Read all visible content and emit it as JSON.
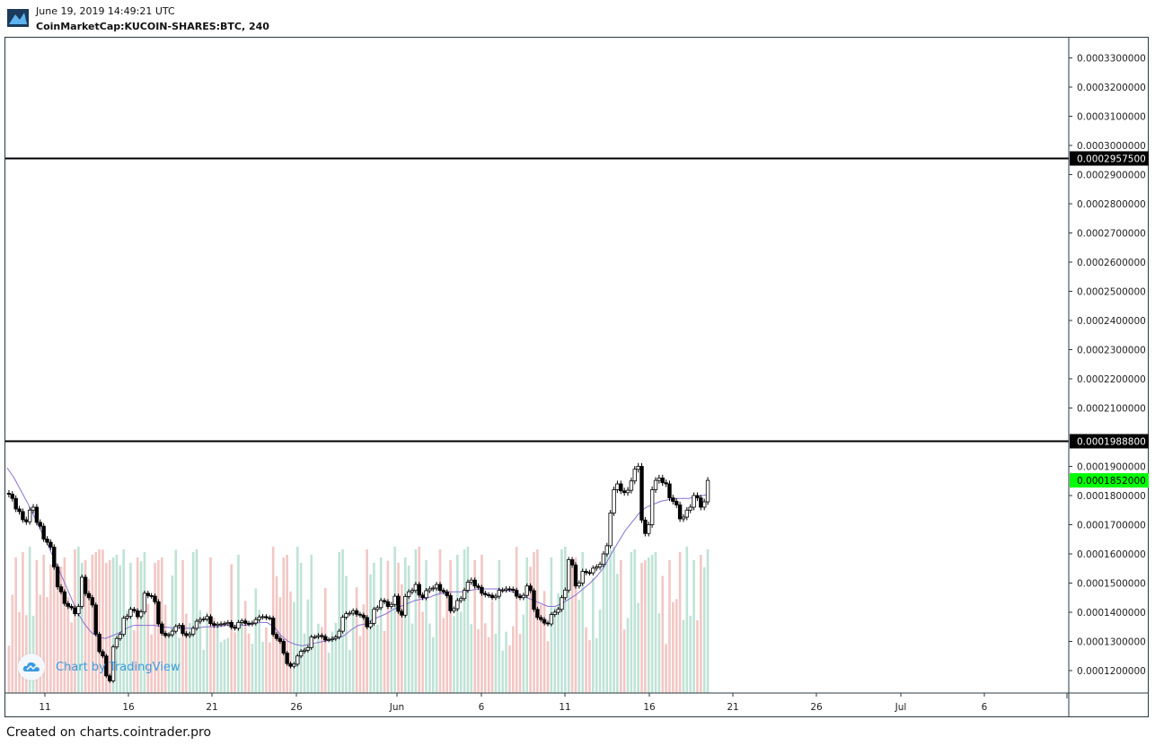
{
  "header": {
    "date": "June 19, 2019 14:49:21 UTC",
    "symbol": "CoinMarketCap:KUCOIN-SHARES:BTC, 240"
  },
  "footer": {
    "text": "Created on charts.cointrader.pro"
  },
  "watermark": {
    "text": "Chart by TradingView",
    "icon": "tradingview-cloud-icon"
  },
  "colors": {
    "candle_outline": "#000000",
    "ma_line": "#8a6fd0",
    "volume_up": "#bfe3d6",
    "volume_down": "#f2c7c4",
    "last_price_bg": "#00ff00",
    "hline_label_bg": "#000000",
    "watermark": "#3a9be0"
  },
  "chart_data": {
    "type": "candlestick",
    "y_axis_labels": [
      "0.0003300000",
      "0.0003200000",
      "0.0003100000",
      "0.0003000000",
      "0.0002900000",
      "0.0002800000",
      "0.0002700000",
      "0.0002600000",
      "0.0002500000",
      "0.0002400000",
      "0.0002300000",
      "0.0002200000",
      "0.0002100000",
      "0.0001900000",
      "0.0001800000",
      "0.0001700000",
      "0.0001600000",
      "0.0001500000",
      "0.0001400000",
      "0.0001300000",
      "0.0001200000"
    ],
    "x_axis_labels": [
      "11",
      "16",
      "21",
      "26",
      "Jun",
      "6",
      "11",
      "16",
      "21",
      "26",
      "Jul",
      "6"
    ],
    "ylim": [
      0.000113,
      0.000337
    ],
    "horizontal_lines": [
      {
        "value": 0.00029575,
        "label": "0.0002957500"
      },
      {
        "value": 0.00019888,
        "label": "0.0001988800"
      }
    ],
    "last_price": {
      "value": 0.0001852,
      "label": "0.0001852000"
    },
    "close_series": [
      0.000179,
      0.0001745,
      0.000171,
      0.000176,
      0.0001695,
      0.000164,
      0.0001555,
      0.000147,
      0.000142,
      0.0001395,
      0.000152,
      0.000145,
      0.0001325,
      0.000125,
      0.0001165,
      0.000131,
      0.000138,
      0.000141,
      0.0001385,
      0.0001465,
      0.0001455,
      0.000136,
      0.000132,
      0.0001335,
      0.0001355,
      0.000132,
      0.0001345,
      0.0001375,
      0.0001385,
      0.0001355,
      0.000136,
      0.0001365,
      0.0001345,
      0.000137,
      0.000136,
      0.0001375,
      0.0001385,
      0.000138,
      0.000131,
      0.000126,
      0.0001215,
      0.000125,
      0.000127,
      0.0001315,
      0.000132,
      0.0001305,
      0.000131,
      0.0001335,
      0.0001395,
      0.0001405,
      0.000139,
      0.000135,
      0.000141,
      0.000144,
      0.000142,
      0.0001455,
      0.000139,
      0.000147,
      0.0001495,
      0.000145,
      0.000148,
      0.0001495,
      0.000147,
      0.0001405,
      0.000144,
      0.0001475,
      0.000151,
      0.0001485,
      0.000146,
      0.000145,
      0.0001475,
      0.000148,
      0.0001475,
      0.000145,
      0.000149,
      0.000141,
      0.0001375,
      0.000136,
      0.00014,
      0.000145,
      0.000158,
      0.000149,
      0.000154,
      0.0001535,
      0.0001555,
      0.00016,
      0.000174,
      0.000184,
      0.000181,
      0.000185,
      0.00019,
      0.000167,
      0.000182,
      0.000186,
      0.000184,
      0.000178,
      0.000172,
      0.000175,
      0.00018,
      0.000176,
      0.0001852
    ],
    "ma_series": [
      0.0001895,
      0.000186,
      0.0001815,
      0.000177,
      0.000172,
      0.000167,
      0.000162,
      0.0001565,
      0.000151,
      0.0001455,
      0.00014,
      0.000136,
      0.000133,
      0.0001315,
      0.000131,
      0.000132,
      0.000133,
      0.0001345,
      0.0001355,
      0.0001355,
      0.0001355,
      0.0001355,
      0.000135,
      0.0001348,
      0.0001345,
      0.0001345,
      0.0001345,
      0.0001345,
      0.000135,
      0.000135,
      0.000135,
      0.0001355,
      0.0001355,
      0.0001355,
      0.0001355,
      0.000136,
      0.0001365,
      0.0001365,
      0.000135,
      0.000132,
      0.00013,
      0.000129,
      0.0001285,
      0.000129,
      0.0001295,
      0.00013,
      0.0001305,
      0.000131,
      0.000132,
      0.000134,
      0.0001355,
      0.000136,
      0.0001375,
      0.0001385,
      0.0001395,
      0.000141,
      0.000142,
      0.000143,
      0.000144,
      0.0001445,
      0.000145,
      0.000146,
      0.0001465,
      0.000147,
      0.000147,
      0.000147,
      0.0001475,
      0.000148,
      0.000148,
      0.000148,
      0.000148,
      0.0001475,
      0.000147,
      0.000146,
      0.000145,
      0.000144,
      0.000143,
      0.000142,
      0.000142,
      0.000143,
      0.0001445,
      0.000146,
      0.000148,
      0.00015,
      0.0001525,
      0.0001555,
      0.00016,
      0.000164,
      0.000168,
      0.000171,
      0.000174,
      0.000176,
      0.000177,
      0.000178,
      0.0001785,
      0.000179,
      0.000179,
      0.000179,
      0.0001795,
      0.00018,
      0.0001805
    ]
  }
}
